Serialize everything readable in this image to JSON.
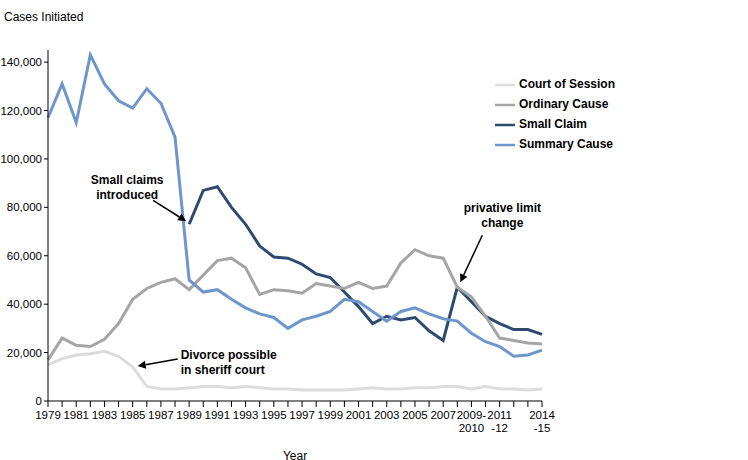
{
  "chart_data": {
    "type": "line",
    "ylabel": "Cases Initiated",
    "xlabel": "Year",
    "categories": [
      "1979",
      null,
      "1981",
      null,
      "1983",
      null,
      "1985",
      null,
      "1987",
      null,
      "1989",
      null,
      "1991",
      null,
      "1993",
      null,
      "1995",
      null,
      "1997",
      null,
      "1999",
      null,
      "2001",
      null,
      "2003",
      null,
      "2005",
      null,
      "2007",
      null,
      "2009-2010",
      null,
      "2011-12",
      null,
      null,
      "2014-15"
    ],
    "series": [
      {
        "name": "Small Claim",
        "color": "#2e4a6e",
        "values": [
          null,
          null,
          null,
          null,
          null,
          null,
          null,
          null,
          null,
          null,
          73000,
          87000,
          88500,
          80000,
          73000,
          64000,
          59500,
          59000,
          56500,
          52500,
          51000,
          45000,
          39000,
          32000,
          35000,
          33500,
          34500,
          29000,
          25000,
          47000,
          41000,
          35000,
          32000,
          29500,
          29500,
          27500
        ]
      },
      {
        "name": "Ordinary Cause",
        "color": "#a5a5a5",
        "values": [
          17000,
          26000,
          23000,
          22500,
          25500,
          32000,
          42000,
          46500,
          49000,
          50500,
          46000,
          52000,
          58000,
          59000,
          55000,
          44000,
          46000,
          45500,
          44500,
          48500,
          47500,
          46500,
          49000,
          46500,
          47500,
          57000,
          62500,
          60000,
          59000,
          47000,
          43000,
          35000,
          26000,
          25000,
          24000,
          23500
        ]
      },
      {
        "name": "Summary Cause",
        "color": "#6f96cc",
        "values": [
          117000,
          131000,
          115000,
          143000,
          131000,
          124000,
          121000,
          129000,
          123000,
          109000,
          50000,
          45000,
          46000,
          42000,
          38500,
          36000,
          34500,
          30000,
          33500,
          35000,
          37000,
          42000,
          41000,
          37000,
          33000,
          37000,
          38500,
          36000,
          34000,
          33000,
          28000,
          24500,
          22500,
          18500,
          19000,
          21000
        ]
      },
      {
        "name": "Court of Session",
        "color": "#dcdcdc",
        "values": [
          15000,
          17500,
          19000,
          19500,
          20500,
          18500,
          14000,
          6000,
          5000,
          5000,
          5500,
          6000,
          6000,
          5500,
          6000,
          5500,
          5000,
          5000,
          4500,
          4500,
          4500,
          4500,
          5000,
          5500,
          5000,
          5000,
          5500,
          5500,
          6000,
          6000,
          5000,
          6000,
          5000,
          5000,
          4500,
          5000
        ]
      }
    ],
    "ylim": [
      0,
      145000
    ],
    "yticks": [
      0,
      {
        "value": 20000,
        "label": "20,000"
      },
      {
        "value": 40000,
        "label": "40,000"
      },
      {
        "value": 60000,
        "label": "60,000"
      },
      {
        "value": 80000,
        "label": "80,000"
      },
      {
        "value": 100000,
        "label": "100,000"
      },
      {
        "value": 120000,
        "label": "120,000"
      },
      {
        "value": 140000,
        "label": "140,000"
      }
    ],
    "grid": false,
    "legend": "top-right",
    "annotations": [
      {
        "text": "Small claims introduced",
        "x": 10,
        "y": 73000
      },
      {
        "text": "Divorce possible in sheriff court",
        "x": 6,
        "y": 14000
      },
      {
        "text": "privative limit change",
        "x": 29,
        "y": 47000
      }
    ]
  }
}
